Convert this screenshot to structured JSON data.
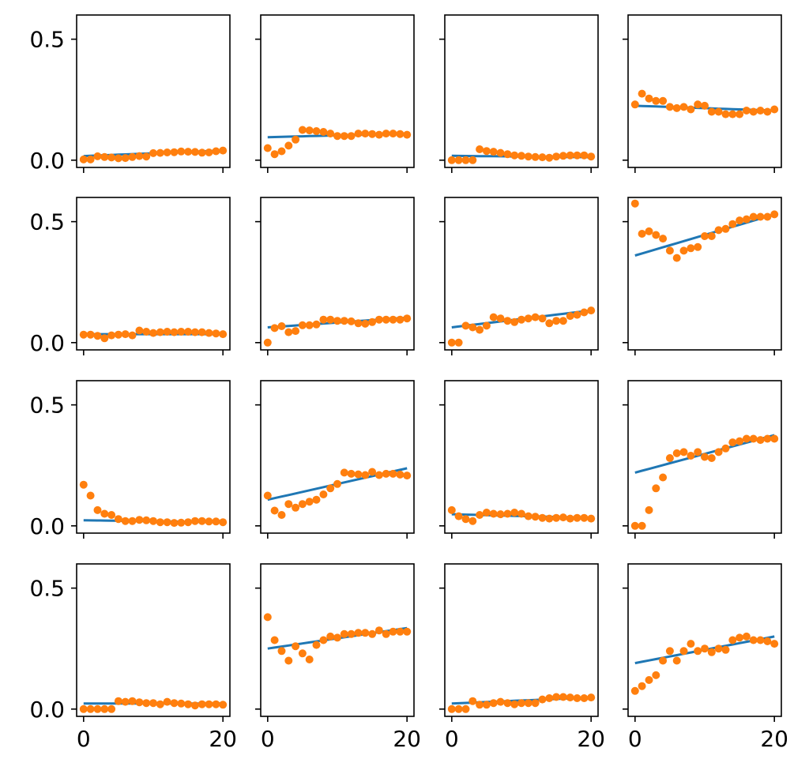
{
  "chart_data": {
    "type": "scatter",
    "layout": "4x4 grid of subplots with shared x and y axes",
    "title": "",
    "xlabel": "",
    "ylabel": "",
    "xlim": [
      -1,
      21
    ],
    "ylim": [
      -0.03,
      0.6
    ],
    "grid": false,
    "legend": "none",
    "x_ticks": [
      0,
      20
    ],
    "y_ticks": [
      0.0,
      0.5
    ],
    "x_tick_labels": [
      "0",
      "20"
    ],
    "y_tick_labels": [
      "0.0",
      "0.5"
    ],
    "colors": {
      "line": "#1f77b4",
      "points": "#ff7f0e",
      "frame": "#000000"
    },
    "x": [
      0,
      1,
      2,
      3,
      4,
      5,
      6,
      7,
      8,
      9,
      10,
      11,
      12,
      13,
      14,
      15,
      16,
      17,
      18,
      19,
      20
    ],
    "panels": [
      {
        "row": 0,
        "col": 0,
        "line": [
          0.017,
          0.04
        ],
        "points": [
          0.003,
          0.003,
          0.016,
          0.013,
          0.011,
          0.008,
          0.009,
          0.013,
          0.017,
          0.015,
          0.029,
          0.03,
          0.032,
          0.033,
          0.036,
          0.035,
          0.034,
          0.031,
          0.032,
          0.037,
          0.04
        ]
      },
      {
        "row": 0,
        "col": 1,
        "line": [
          0.095,
          0.11
        ],
        "points": [
          0.05,
          0.025,
          0.037,
          0.06,
          0.085,
          0.125,
          0.123,
          0.12,
          0.117,
          0.11,
          0.1,
          0.1,
          0.1,
          0.11,
          0.11,
          0.108,
          0.105,
          0.11,
          0.11,
          0.108,
          0.105
        ]
      },
      {
        "row": 0,
        "col": 2,
        "line": [
          0.018,
          0.012
        ],
        "points": [
          0.0,
          0.0,
          0.0,
          0.0,
          0.045,
          0.038,
          0.035,
          0.03,
          0.025,
          0.02,
          0.018,
          0.015,
          0.013,
          0.012,
          0.01,
          0.015,
          0.018,
          0.02,
          0.02,
          0.02,
          0.015
        ]
      },
      {
        "row": 0,
        "col": 3,
        "line": [
          0.225,
          0.205
        ],
        "points": [
          0.23,
          0.275,
          0.255,
          0.245,
          0.245,
          0.22,
          0.215,
          0.22,
          0.21,
          0.23,
          0.225,
          0.2,
          0.2,
          0.19,
          0.19,
          0.19,
          0.205,
          0.2,
          0.205,
          0.2,
          0.21
        ]
      },
      {
        "row": 1,
        "col": 0,
        "line": [
          0.035,
          0.035
        ],
        "points": [
          0.033,
          0.033,
          0.028,
          0.018,
          0.03,
          0.033,
          0.035,
          0.03,
          0.05,
          0.045,
          0.04,
          0.043,
          0.045,
          0.043,
          0.045,
          0.045,
          0.043,
          0.043,
          0.04,
          0.038,
          0.035
        ]
      },
      {
        "row": 1,
        "col": 1,
        "line": [
          0.063,
          0.103
        ],
        "points": [
          0.0,
          0.06,
          0.068,
          0.043,
          0.048,
          0.072,
          0.072,
          0.075,
          0.095,
          0.095,
          0.09,
          0.09,
          0.088,
          0.08,
          0.078,
          0.085,
          0.095,
          0.095,
          0.095,
          0.095,
          0.1
        ]
      },
      {
        "row": 1,
        "col": 2,
        "line": [
          0.063,
          0.133
        ],
        "points": [
          0.0,
          0.0,
          0.07,
          0.063,
          0.053,
          0.07,
          0.105,
          0.1,
          0.09,
          0.085,
          0.095,
          0.1,
          0.105,
          0.1,
          0.08,
          0.09,
          0.09,
          0.11,
          0.115,
          0.125,
          0.133
        ]
      },
      {
        "row": 1,
        "col": 3,
        "line": [
          0.36,
          0.53
        ],
        "points": [
          0.575,
          0.45,
          0.46,
          0.445,
          0.43,
          0.38,
          0.35,
          0.38,
          0.39,
          0.395,
          0.44,
          0.44,
          0.465,
          0.47,
          0.49,
          0.505,
          0.51,
          0.52,
          0.52,
          0.52,
          0.53
        ]
      },
      {
        "row": 2,
        "col": 0,
        "line": [
          0.023,
          0.015
        ],
        "points": [
          0.17,
          0.125,
          0.065,
          0.05,
          0.045,
          0.028,
          0.02,
          0.02,
          0.025,
          0.023,
          0.02,
          0.015,
          0.015,
          0.012,
          0.013,
          0.015,
          0.02,
          0.02,
          0.018,
          0.018,
          0.015
        ]
      },
      {
        "row": 2,
        "col": 1,
        "line": [
          0.108,
          0.238
        ],
        "points": [
          0.125,
          0.063,
          0.045,
          0.09,
          0.075,
          0.09,
          0.1,
          0.108,
          0.13,
          0.155,
          0.173,
          0.22,
          0.215,
          0.213,
          0.21,
          0.223,
          0.21,
          0.215,
          0.215,
          0.212,
          0.208
        ]
      },
      {
        "row": 2,
        "col": 2,
        "line": [
          0.048,
          0.033
        ],
        "points": [
          0.065,
          0.04,
          0.028,
          0.02,
          0.045,
          0.055,
          0.05,
          0.048,
          0.05,
          0.055,
          0.05,
          0.04,
          0.038,
          0.033,
          0.03,
          0.033,
          0.035,
          0.03,
          0.033,
          0.033,
          0.03
        ]
      },
      {
        "row": 2,
        "col": 3,
        "line": [
          0.22,
          0.375
        ],
        "points": [
          0.0,
          0.0,
          0.065,
          0.155,
          0.2,
          0.28,
          0.3,
          0.305,
          0.29,
          0.305,
          0.285,
          0.28,
          0.305,
          0.32,
          0.345,
          0.35,
          0.36,
          0.36,
          0.355,
          0.36,
          0.36
        ]
      },
      {
        "row": 3,
        "col": 0,
        "line": [
          0.023,
          0.023
        ],
        "points": [
          0.0,
          0.0,
          0.0,
          0.0,
          0.0,
          0.033,
          0.03,
          0.033,
          0.028,
          0.025,
          0.025,
          0.02,
          0.03,
          0.025,
          0.023,
          0.02,
          0.015,
          0.02,
          0.02,
          0.02,
          0.018
        ]
      },
      {
        "row": 3,
        "col": 1,
        "line": [
          0.25,
          0.335
        ],
        "points": [
          0.38,
          0.285,
          0.24,
          0.2,
          0.26,
          0.23,
          0.205,
          0.265,
          0.285,
          0.3,
          0.295,
          0.31,
          0.31,
          0.315,
          0.315,
          0.31,
          0.325,
          0.31,
          0.32,
          0.32,
          0.32
        ]
      },
      {
        "row": 3,
        "col": 2,
        "line": [
          0.023,
          0.048
        ],
        "points": [
          0.0,
          0.0,
          0.0,
          0.033,
          0.018,
          0.018,
          0.025,
          0.03,
          0.025,
          0.02,
          0.025,
          0.025,
          0.025,
          0.04,
          0.045,
          0.05,
          0.05,
          0.048,
          0.045,
          0.045,
          0.048
        ]
      },
      {
        "row": 3,
        "col": 3,
        "line": [
          0.19,
          0.3
        ],
        "points": [
          0.075,
          0.095,
          0.12,
          0.14,
          0.2,
          0.24,
          0.2,
          0.24,
          0.27,
          0.24,
          0.25,
          0.235,
          0.25,
          0.245,
          0.285,
          0.295,
          0.3,
          0.285,
          0.285,
          0.28,
          0.27
        ]
      }
    ]
  }
}
